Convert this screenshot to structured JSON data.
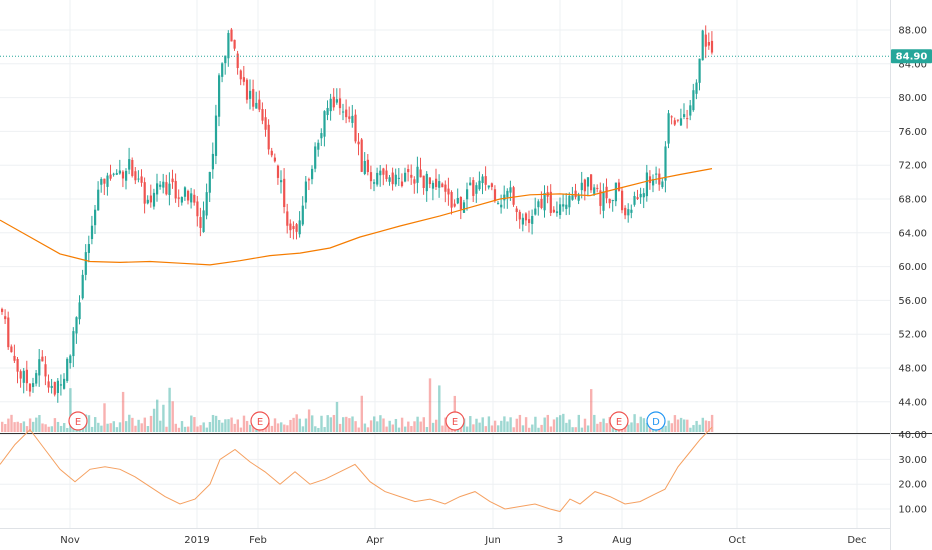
{
  "chart_data": {
    "type": "candlestick",
    "x_ticks": [
      "Nov",
      "2019",
      "Feb",
      "Apr",
      "Jun",
      "3",
      "Aug",
      "Oct",
      "Dec"
    ],
    "price_axis": {
      "ylim": [
        41.5,
        92.5
      ],
      "ticks": [
        "44.00",
        "48.00",
        "52.00",
        "56.00",
        "60.00",
        "64.00",
        "68.00",
        "72.00",
        "76.00",
        "80.00",
        "84.00",
        "88.00"
      ]
    },
    "indicator_axis": {
      "ylim": [
        7,
        45
      ],
      "ticks": [
        "10.00",
        "20.00",
        "30.00",
        "40.00"
      ]
    },
    "last_price": {
      "label": "84.90",
      "value": 84.9
    },
    "colors": {
      "up": "#26a69a",
      "down": "#ef5350",
      "ma": "#f57c00",
      "indicator": "#f5a060",
      "price_line": "#26a69a"
    },
    "events": [
      {
        "label": "E",
        "x": 78,
        "color": "#ef5350"
      },
      {
        "label": "E",
        "x": 260,
        "color": "#ef5350"
      },
      {
        "label": "E",
        "x": 455,
        "color": "#ef5350"
      },
      {
        "label": "E",
        "x": 619,
        "color": "#ef5350"
      },
      {
        "label": "D",
        "x": 656,
        "color": "#2196f3"
      }
    ],
    "close_path": [
      [
        0,
        55
      ],
      [
        10,
        50
      ],
      [
        20,
        47
      ],
      [
        30,
        46
      ],
      [
        40,
        49
      ],
      [
        50,
        45
      ],
      [
        60,
        46
      ],
      [
        70,
        50
      ],
      [
        80,
        58
      ],
      [
        90,
        64
      ],
      [
        100,
        70
      ],
      [
        115,
        71
      ],
      [
        130,
        72
      ],
      [
        140,
        69
      ],
      [
        150,
        67
      ],
      [
        160,
        70
      ],
      [
        175,
        69
      ],
      [
        190,
        68
      ],
      [
        200,
        65
      ],
      [
        210,
        72
      ],
      [
        218,
        82
      ],
      [
        225,
        86
      ],
      [
        232,
        88
      ],
      [
        240,
        82
      ],
      [
        250,
        80
      ],
      [
        260,
        77
      ],
      [
        270,
        74
      ],
      [
        280,
        70
      ],
      [
        290,
        63
      ],
      [
        300,
        67
      ],
      [
        310,
        72
      ],
      [
        320,
        76
      ],
      [
        330,
        80
      ],
      [
        340,
        79
      ],
      [
        350,
        78
      ],
      [
        360,
        72
      ],
      [
        375,
        70
      ],
      [
        390,
        71
      ],
      [
        400,
        70
      ],
      [
        415,
        71
      ],
      [
        425,
        70
      ],
      [
        440,
        69
      ],
      [
        455,
        67
      ],
      [
        470,
        69
      ],
      [
        485,
        70
      ],
      [
        500,
        68
      ],
      [
        510,
        69
      ],
      [
        520,
        66
      ],
      [
        530,
        65
      ],
      [
        540,
        68
      ],
      [
        550,
        67
      ],
      [
        560,
        68
      ],
      [
        575,
        69
      ],
      [
        590,
        70
      ],
      [
        600,
        68
      ],
      [
        615,
        69
      ],
      [
        625,
        66
      ],
      [
        635,
        68
      ],
      [
        645,
        70
      ],
      [
        655,
        71
      ],
      [
        662,
        70
      ],
      [
        668,
        78
      ],
      [
        675,
        77
      ],
      [
        685,
        78
      ],
      [
        695,
        81
      ],
      [
        700,
        87
      ],
      [
        705,
        87
      ],
      [
        712,
        85
      ]
    ],
    "ma_path": [
      [
        0,
        65.5
      ],
      [
        30,
        63.5
      ],
      [
        60,
        61.5
      ],
      [
        90,
        60.6
      ],
      [
        120,
        60.5
      ],
      [
        150,
        60.6
      ],
      [
        180,
        60.4
      ],
      [
        210,
        60.2
      ],
      [
        240,
        60.7
      ],
      [
        270,
        61.3
      ],
      [
        300,
        61.6
      ],
      [
        330,
        62.2
      ],
      [
        360,
        63.5
      ],
      [
        400,
        64.8
      ],
      [
        440,
        66.0
      ],
      [
        470,
        67.0
      ],
      [
        500,
        68.0
      ],
      [
        530,
        68.5
      ],
      [
        560,
        68.6
      ],
      [
        590,
        68.4
      ],
      [
        620,
        69.3
      ],
      [
        650,
        70.2
      ],
      [
        680,
        70.9
      ],
      [
        712,
        71.6
      ]
    ],
    "indicator_path": [
      [
        0,
        28
      ],
      [
        15,
        36
      ],
      [
        30,
        42
      ],
      [
        45,
        34
      ],
      [
        60,
        26
      ],
      [
        75,
        21
      ],
      [
        90,
        26
      ],
      [
        105,
        27
      ],
      [
        120,
        26
      ],
      [
        135,
        23
      ],
      [
        150,
        19
      ],
      [
        165,
        15
      ],
      [
        180,
        12
      ],
      [
        195,
        14
      ],
      [
        210,
        20
      ],
      [
        220,
        30
      ],
      [
        235,
        34
      ],
      [
        250,
        29
      ],
      [
        265,
        25
      ],
      [
        280,
        20
      ],
      [
        295,
        25
      ],
      [
        310,
        20
      ],
      [
        325,
        22
      ],
      [
        340,
        25
      ],
      [
        355,
        28
      ],
      [
        370,
        21
      ],
      [
        385,
        17
      ],
      [
        400,
        15
      ],
      [
        415,
        13
      ],
      [
        430,
        14
      ],
      [
        445,
        12
      ],
      [
        460,
        15
      ],
      [
        475,
        17
      ],
      [
        490,
        13
      ],
      [
        505,
        10
      ],
      [
        520,
        11
      ],
      [
        535,
        12
      ],
      [
        550,
        10
      ],
      [
        560,
        9
      ],
      [
        570,
        14
      ],
      [
        580,
        12
      ],
      [
        595,
        17
      ],
      [
        610,
        15
      ],
      [
        625,
        12
      ],
      [
        640,
        13
      ],
      [
        655,
        16
      ],
      [
        665,
        18
      ],
      [
        678,
        27
      ],
      [
        690,
        33
      ],
      [
        700,
        38
      ],
      [
        712,
        43
      ]
    ]
  }
}
